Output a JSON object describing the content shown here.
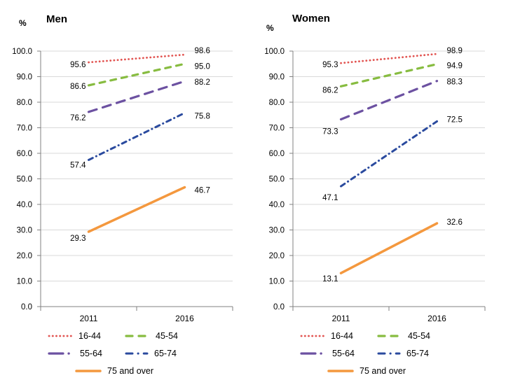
{
  "colors": {
    "background": "#FFFFFF",
    "grid": "#D9D9D9",
    "axis": "#808080",
    "text": "#000000"
  },
  "chart_data": [
    {
      "type": "line",
      "title": "Men",
      "ylabel": "%",
      "xlabel": "",
      "categories": [
        "2011",
        "2016"
      ],
      "ylim": [
        0,
        100
      ],
      "ytick_step": 10,
      "ytick_format": "one-decimal",
      "grid": true,
      "legend_position": "bottom",
      "series": [
        {
          "name": "16-44",
          "values": [
            95.6,
            98.6
          ],
          "color": "#E25552",
          "style": "dotted"
        },
        {
          "name": "45-54",
          "values": [
            86.6,
            95.0
          ],
          "color": "#87BC40",
          "style": "dashed"
        },
        {
          "name": "55-64",
          "values": [
            76.2,
            88.2
          ],
          "color": "#6C51A1",
          "style": "long-dash-dot"
        },
        {
          "name": "65-74",
          "values": [
            57.4,
            75.8
          ],
          "color": "#2A4A9E",
          "style": "dash-dot"
        },
        {
          "name": "75 and over",
          "values": [
            29.3,
            46.7
          ],
          "color": "#F4983E",
          "style": "solid"
        }
      ]
    },
    {
      "type": "line",
      "title": "Women",
      "ylabel": "%",
      "xlabel": "",
      "categories": [
        "2011",
        "2016"
      ],
      "ylim": [
        0,
        100
      ],
      "ytick_step": 10,
      "ytick_format": "one-decimal",
      "grid": true,
      "legend_position": "bottom",
      "series": [
        {
          "name": "16-44",
          "values": [
            95.3,
            98.9
          ],
          "color": "#E25552",
          "style": "dotted"
        },
        {
          "name": "45-54",
          "values": [
            86.2,
            94.9
          ],
          "color": "#87BC40",
          "style": "dashed"
        },
        {
          "name": "55-64",
          "values": [
            73.3,
            88.3
          ],
          "color": "#6C51A1",
          "style": "long-dash-dot"
        },
        {
          "name": "65-74",
          "values": [
            47.1,
            72.5
          ],
          "color": "#2A4A9E",
          "style": "dash-dot"
        },
        {
          "name": "75 and over",
          "values": [
            13.1,
            32.6
          ],
          "color": "#F4983E",
          "style": "solid"
        }
      ]
    }
  ]
}
